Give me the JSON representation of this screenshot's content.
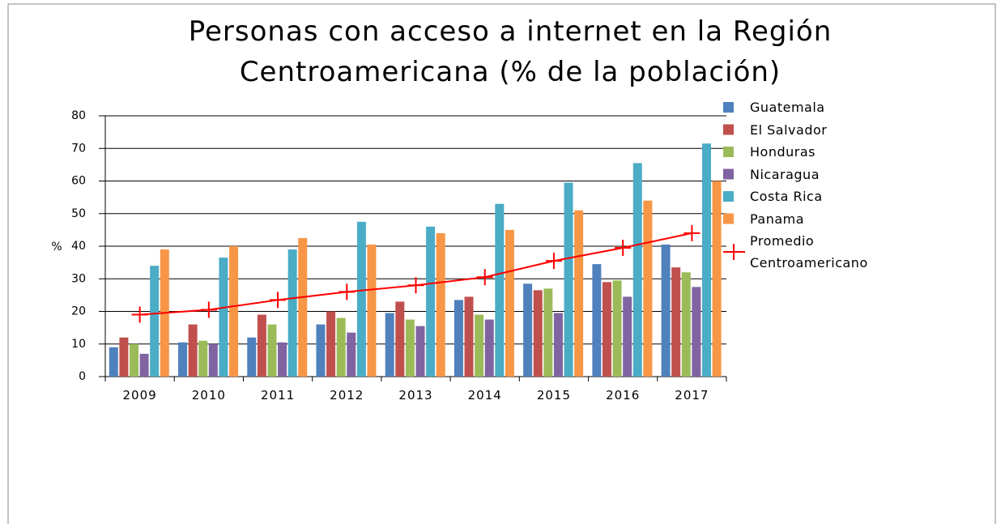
{
  "chart_data": {
    "type": "bar",
    "title": "Personas con acceso a internet en la Región Centroamericana (% de la población)",
    "y_label": "%",
    "categories": [
      "2009",
      "2010",
      "2011",
      "2012",
      "2013",
      "2014",
      "2015",
      "2016",
      "2017"
    ],
    "series": [
      {
        "name": "Guatemala",
        "color": "#4f81bd",
        "values": [
          9,
          10.5,
          12,
          16,
          19.5,
          23.5,
          28.5,
          34.5,
          40.5
        ]
      },
      {
        "name": "El Salvador",
        "color": "#c0504d",
        "values": [
          12,
          16,
          19,
          20,
          23,
          24.5,
          26.5,
          29,
          33.5
        ]
      },
      {
        "name": "Honduras",
        "color": "#9bbb59",
        "values": [
          10,
          11,
          16,
          18,
          17.5,
          19,
          27,
          29.5,
          32
        ]
      },
      {
        "name": "Nicaragua",
        "color": "#8064a2",
        "values": [
          7,
          10,
          10.5,
          13.5,
          15.5,
          17.5,
          19.5,
          24.5,
          27.5
        ]
      },
      {
        "name": "Costa Rica",
        "color": "#4bacc6",
        "values": [
          34,
          36.5,
          39,
          47.5,
          46,
          53,
          59.5,
          65.5,
          71.5
        ]
      },
      {
        "name": "Panama",
        "color": "#f79646",
        "values": [
          39,
          40,
          42.5,
          40.5,
          44,
          45,
          51,
          54,
          60
        ]
      },
      {
        "name": "Promedio Centroamericano",
        "color": "#ff0000",
        "type": "line",
        "values": [
          19,
          20.5,
          23.5,
          26,
          28,
          30.5,
          35.5,
          39.5,
          44
        ]
      }
    ],
    "ylim": [
      0,
      80
    ],
    "yticks": [
      0,
      10,
      20,
      30,
      40,
      50,
      60,
      70,
      80
    ],
    "grid": true,
    "legend": "right"
  }
}
